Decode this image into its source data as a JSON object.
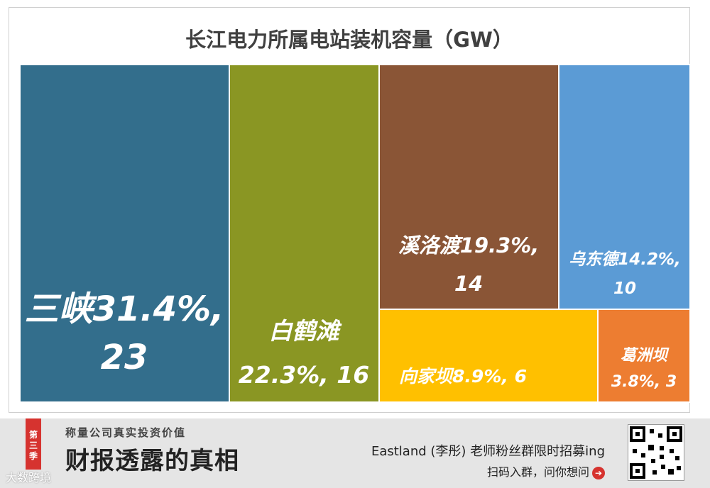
{
  "chart_data": {
    "type": "treemap",
    "title": "长江电力所属电站装机容量（GW）",
    "items": [
      {
        "name": "三峡",
        "percent": "31.4%",
        "value": 23,
        "color": "#336e8c",
        "label_lines": [
          "三峡31.4%,",
          "23"
        ]
      },
      {
        "name": "白鹤滩",
        "percent": "22.3%",
        "value": 16,
        "color": "#8a9623",
        "label_lines": [
          "白鹤滩",
          "22.3%, 16"
        ]
      },
      {
        "name": "溪洛渡",
        "percent": "19.3%",
        "value": 14,
        "color": "#8a5536",
        "label_lines": [
          "溪洛渡19.3%,",
          "14"
        ]
      },
      {
        "name": "乌东德",
        "percent": "14.2%",
        "value": 10,
        "color": "#5b9bd5",
        "label_lines": [
          "乌东德14.2%,",
          "10"
        ]
      },
      {
        "name": "向家坝",
        "percent": "8.9%",
        "value": 6,
        "color": "#ffc000",
        "label_lines": [
          "向家坝8.9%, 6"
        ]
      },
      {
        "name": "葛洲坝",
        "percent": "3.8%",
        "value": 3,
        "color": "#ed7d31",
        "label_lines": [
          "葛洲坝",
          "3.8%, 3"
        ]
      }
    ]
  },
  "footer": {
    "ribbon": "第三季",
    "subtitle": "称量公司真实投资价值",
    "big_title": "财报透露的真相",
    "promo_line1": "Eastland (李彤) 老师粉丝群限时招募ing",
    "promo_line2": "扫码入群，问你想问",
    "arrow": "➔",
    "watermark": "大数跨境"
  }
}
